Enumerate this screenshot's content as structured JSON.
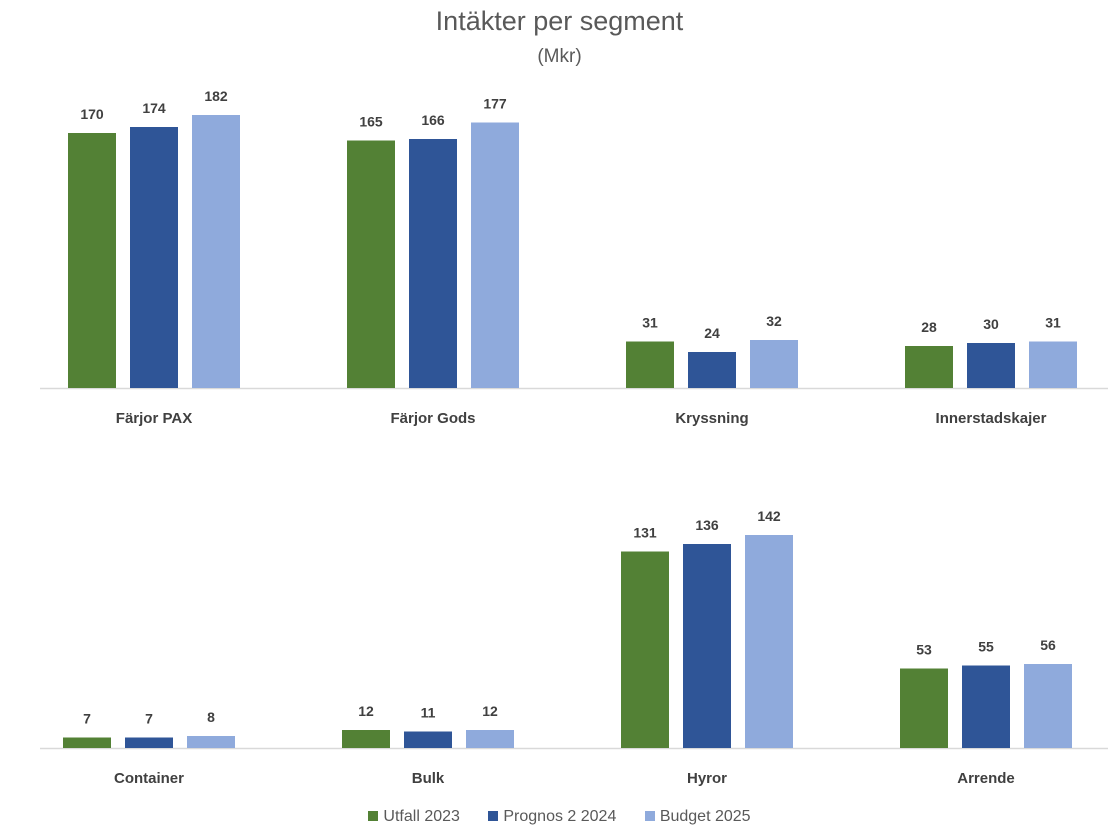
{
  "title": "Intäkter per segment",
  "subtitle": "(Mkr)",
  "chart_data": {
    "type": "bar",
    "title": "Intäkter per segment",
    "subtitle": "(Mkr)",
    "categories": [
      "Färjor PAX",
      "Färjor Gods",
      "Kryssning",
      "Innerstadskajer",
      "Container",
      "Bulk",
      "Hyror",
      "Arrende"
    ],
    "series": [
      {
        "name": "Utfall 2023",
        "color": "#538135",
        "values": [
          170,
          165,
          31,
          28,
          7,
          12,
          131,
          53
        ]
      },
      {
        "name": "Prognos 2 2024",
        "color": "#2F5597",
        "values": [
          174,
          166,
          24,
          30,
          7,
          11,
          136,
          55
        ]
      },
      {
        "name": "Budget 2025",
        "color": "#8FAADC",
        "values": [
          182,
          177,
          32,
          31,
          8,
          12,
          142,
          56
        ]
      }
    ],
    "panels": [
      {
        "categories": [
          "Färjor PAX",
          "Färjor Gods",
          "Kryssning",
          "Innerstadskajer"
        ]
      },
      {
        "categories": [
          "Container",
          "Bulk",
          "Hyror",
          "Arrende"
        ]
      }
    ],
    "data_labels": true,
    "grid": false,
    "legend": "bottom"
  }
}
